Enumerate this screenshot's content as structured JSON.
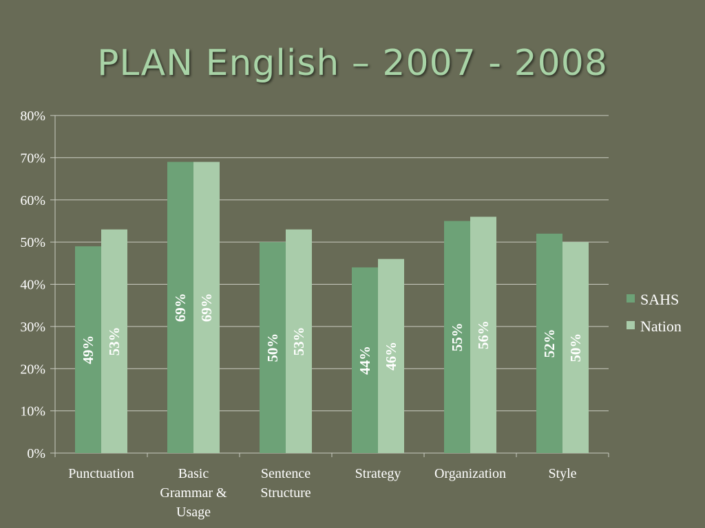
{
  "title": "PLAN English – 2007 - 2008",
  "colors": {
    "background": "#686b56",
    "title": "#a8d3a6",
    "sahs": "#6da277",
    "nation": "#a9ccaa",
    "grid": "#c9cbc0",
    "text": "#ffffff"
  },
  "chart_data": {
    "type": "bar",
    "title": "",
    "xlabel": "",
    "ylabel": "",
    "ylim": [
      0,
      80
    ],
    "yticks": [
      "0%",
      "10%",
      "20%",
      "30%",
      "40%",
      "50%",
      "60%",
      "70%",
      "80%"
    ],
    "categories": [
      [
        "Punctuation"
      ],
      [
        "Basic",
        "Grammar &",
        "Usage"
      ],
      [
        "Sentence",
        "Structure"
      ],
      [
        "Strategy"
      ],
      [
        "Organization"
      ],
      [
        "Style"
      ]
    ],
    "series": [
      {
        "name": "SAHS",
        "values": [
          49,
          69,
          50,
          44,
          55,
          52
        ],
        "labels": [
          "49%",
          "69%",
          "50%",
          "44%",
          "55%",
          "52%"
        ]
      },
      {
        "name": "Nation",
        "values": [
          53,
          69,
          53,
          46,
          56,
          50
        ],
        "labels": [
          "53%",
          "69%",
          "53%",
          "46%",
          "56%",
          "50%"
        ]
      }
    ],
    "grid": true,
    "legend": "right"
  }
}
